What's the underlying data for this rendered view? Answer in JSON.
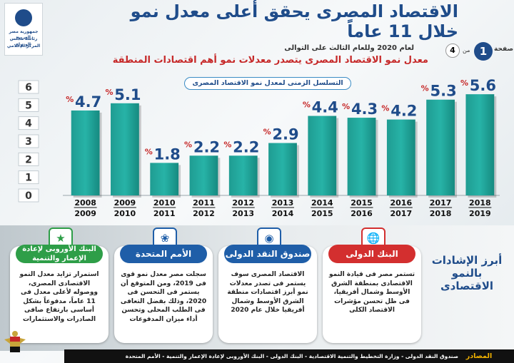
{
  "header": {
    "logo_lines": [
      "جمهورية مصر العربية",
      "رئاسة مجلس الوزراء",
      "المركز الإعلامي"
    ],
    "title": "الاقتصاد المصرى يحقق أعلى معدل نمو خلال 11 عاماً",
    "subtitle1": "لعام 2020 وللعام الثالث على التوالى",
    "subtitle2": "معدل نمو الاقتصاد المصرى يتصدر معدلات نمو أهم اقتصادات المنطقة",
    "page_word": "صفحة",
    "page_number": "1",
    "page_of": "من",
    "page_total": "4"
  },
  "chart_data": {
    "type": "bar",
    "title": "التسلسل الزمنى لمعدل نمو الاقتصاد المصرى",
    "categories": [
      [
        "2008",
        "2009"
      ],
      [
        "2009",
        "2010"
      ],
      [
        "2010",
        "2011"
      ],
      [
        "2011",
        "2012"
      ],
      [
        "2012",
        "2013"
      ],
      [
        "2013",
        "2014"
      ],
      [
        "2014",
        "2015"
      ],
      [
        "2015",
        "2016"
      ],
      [
        "2016",
        "2017"
      ],
      [
        "2017",
        "2018"
      ],
      [
        "2018",
        "2019"
      ]
    ],
    "values": [
      4.7,
      5.1,
      1.8,
      2.2,
      2.2,
      2.9,
      4.4,
      4.3,
      4.2,
      5.3,
      5.6
    ],
    "value_labels": [
      "4.7",
      "5.1",
      "1.8",
      "2.2",
      "2.2",
      "2.9",
      "4.4",
      "4.3",
      "4.2",
      "5.3",
      "5.6"
    ],
    "percent_sign": "%",
    "yticks": [
      "0",
      "1",
      "2",
      "3",
      "4",
      "5",
      "6"
    ],
    "ylim": [
      0,
      6
    ],
    "bar_color": "#27b3a7",
    "grid": false
  },
  "cards": [
    {
      "title": "البنك الدولى",
      "icon": "world-bank-logo",
      "text": "تستمر مصر فى قيادة النمو الاقتصادى بمنطقة الشرق الأوسط وشمال أفريقيا، فى ظل تحسن مؤشرات الاقتصاد الكلى"
    },
    {
      "title": "صندوق النقد الدولى",
      "icon": "imf-seal",
      "text": "الاقتصاد المصرى سوف يستمر فى تصدر معدلات نمو أبرز اقتصادات منطقة الشرق الأوسط وشمال أفريقيا خلال عام 2020"
    },
    {
      "title": "الأمم المتحدة",
      "icon": "united-nations-logo",
      "text": "سجلت مصر معدل نمو قوى فى 2019، ومن المتوقع أن يستمر فى التحسن فى 2020، وذلك بفضل التعافى فى الطلب المحلى وتحسن أداء ميزان المدفوعات"
    },
    {
      "title": "البنك الأوروبى لإعادة الإعمار والتنمية",
      "icon": "ebrd-logo",
      "text": "استمرار تزايد معدل النمو الاقتصادى المصرى، ووصوله لأعلى معدل فى 11 عاماً، مدفوعاً بشكل أساسى بارتفاع صافى الصادرات والاستثمارات"
    }
  ],
  "highlights_title": "أبرز الإشادات بالنمو الاقتصادى",
  "sources": {
    "label": "المصادر",
    "text": "صندوق النقد الدولى - وزارة التخطيط والتنمية الاقتصادية - البنك الدولى - البنك الأوروبى لإعادة الإعمار والتنمية - الأمم المتحدة"
  },
  "colors": {
    "primary": "#1f4c8a",
    "accent_red": "#c62828",
    "bar": "#27b3a7"
  }
}
